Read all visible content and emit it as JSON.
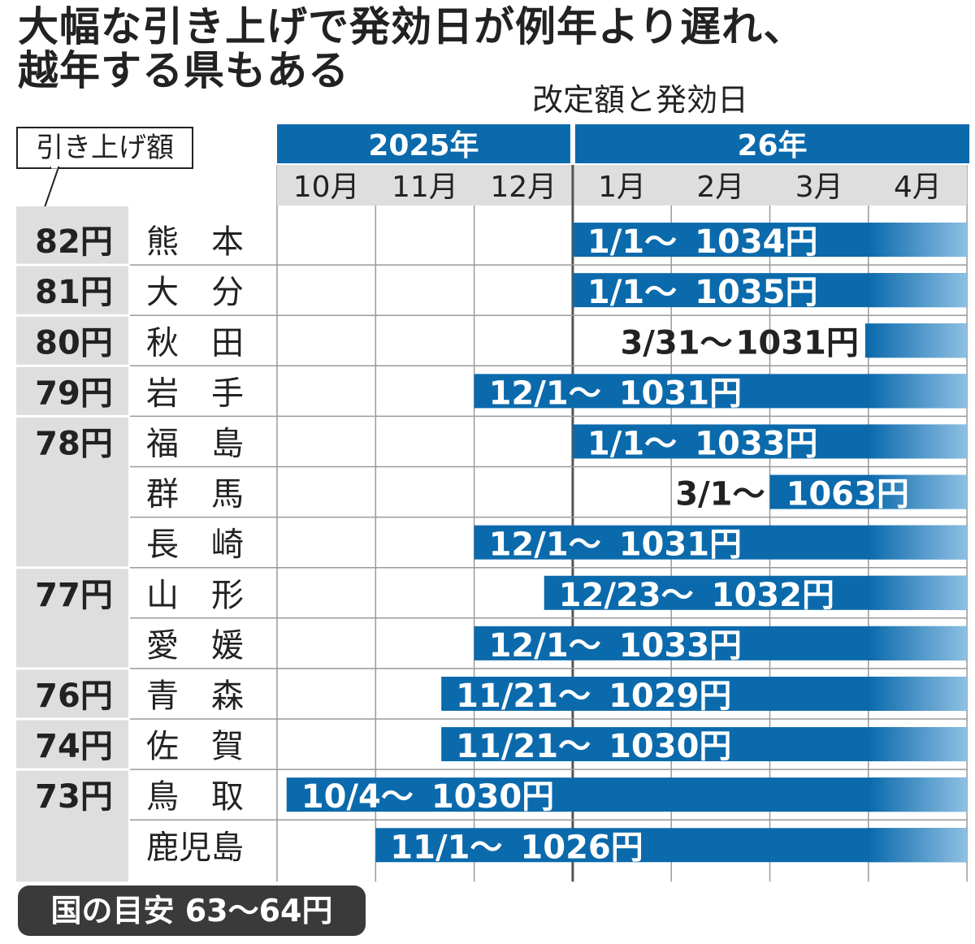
{
  "headline": {
    "line1": "大幅な引き上げで発効日が例年より遅れ、",
    "line2": "越年する県もある"
  },
  "subtitle": "改定額と発効日",
  "raise_label": "引き上げ額",
  "national_guideline": "国の目安 63〜64円",
  "colors": {
    "bar": "#0b6aac",
    "bar_fade_end": "#8ec0e2",
    "header_bar": "#0b6aac",
    "month_header_bg": "#dedede",
    "left_band_bg": "#dedede",
    "grid": "#9a9a9a",
    "badge_bg": "#3a3a3a"
  },
  "chart_data": {
    "type": "gantt",
    "years": [
      {
        "label": "2025年",
        "start_month": 0,
        "months": 3
      },
      {
        "label": "26年",
        "start_month": 3,
        "months": 4
      }
    ],
    "months": [
      "10月",
      "11月",
      "12月",
      "1月",
      "2月",
      "3月",
      "4月"
    ],
    "axis_start": "2025-10-01",
    "rows": [
      {
        "raise": "82円",
        "prefecture": "熊　本",
        "start": "2026-01-01",
        "date_label": "1/1〜",
        "wage_label": "1034円",
        "label_inside": true
      },
      {
        "raise": "81円",
        "prefecture": "大　分",
        "start": "2026-01-01",
        "date_label": "1/1〜",
        "wage_label": "1035円",
        "label_inside": true
      },
      {
        "raise": "80円",
        "prefecture": "秋　田",
        "start": "2026-03-31",
        "date_label": "3/31〜",
        "wage_label": "1031円",
        "label_inside": false
      },
      {
        "raise": "79円",
        "prefecture": "岩　手",
        "start": "2025-12-01",
        "date_label": "12/1〜",
        "wage_label": "1031円",
        "label_inside": true
      },
      {
        "raise": "78円",
        "prefecture": "福　島",
        "start": "2026-01-01",
        "date_label": "1/1〜",
        "wage_label": "1033円",
        "label_inside": true
      },
      {
        "raise": "",
        "prefecture": "群　馬",
        "start": "2026-03-01",
        "date_label": "3/1〜",
        "wage_label": "1063円",
        "label_inside": "split"
      },
      {
        "raise": "",
        "prefecture": "長　崎",
        "start": "2025-12-01",
        "date_label": "12/1〜",
        "wage_label": "1031円",
        "label_inside": true
      },
      {
        "raise": "77円",
        "prefecture": "山　形",
        "start": "2025-12-23",
        "date_label": "12/23〜",
        "wage_label": "1032円",
        "label_inside": true
      },
      {
        "raise": "",
        "prefecture": "愛　媛",
        "start": "2025-12-01",
        "date_label": "12/1〜",
        "wage_label": "1033円",
        "label_inside": true
      },
      {
        "raise": "76円",
        "prefecture": "青　森",
        "start": "2025-11-21",
        "date_label": "11/21〜",
        "wage_label": "1029円",
        "label_inside": true
      },
      {
        "raise": "74円",
        "prefecture": "佐　賀",
        "start": "2025-11-21",
        "date_label": "11/21〜",
        "wage_label": "1030円",
        "label_inside": true
      },
      {
        "raise": "73円",
        "prefecture": "鳥　取",
        "start": "2025-10-04",
        "date_label": "10/4〜",
        "wage_label": "1030円",
        "label_inside": true
      },
      {
        "raise": "",
        "prefecture": "鹿児島",
        "start": "2025-11-01",
        "date_label": "11/1〜",
        "wage_label": "1026円",
        "label_inside": true
      }
    ]
  }
}
